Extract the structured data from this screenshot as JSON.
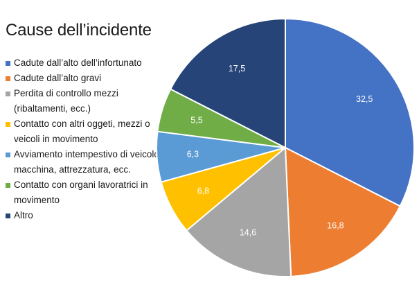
{
  "chart_data": {
    "type": "pie",
    "title": "Cause dell’incidente",
    "legend_position": "left",
    "slices": [
      {
        "name": "Cadute dall’alto dell’infortunato",
        "value": 32.5,
        "label": "32,5",
        "color": "#4472C4"
      },
      {
        "name": "Cadute dall’alto gravi",
        "value": 16.8,
        "label": "16,8",
        "color": "#ED7D31"
      },
      {
        "name": "Perdita di controllo mezzi (ribaltamenti, ecc.)",
        "value": 14.6,
        "label": "14,6",
        "color": "#A5A5A5"
      },
      {
        "name": "Contatto con altri oggeti, mezzi o veicoli in movimento",
        "value": 6.8,
        "label": "6,8",
        "color": "#FFC000"
      },
      {
        "name": "Avviamento intempestivo di veicolo, macchina, attrezzatura, ecc.",
        "value": 6.3,
        "label": "6,3",
        "color": "#5B9BD5"
      },
      {
        "name": "Contatto con organi lavoratrici in movimento",
        "value": 5.5,
        "label": "5,5",
        "color": "#70AD47"
      },
      {
        "name": "Altro",
        "value": 17.5,
        "label": "17,5",
        "color": "#264478"
      }
    ]
  }
}
